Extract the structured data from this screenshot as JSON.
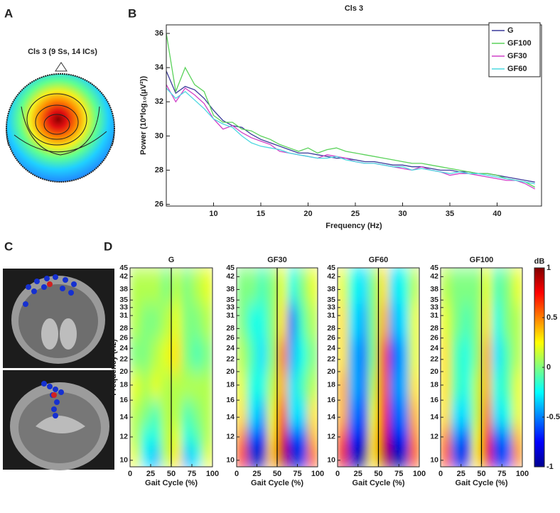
{
  "labels": {
    "a": "A",
    "b": "B",
    "c": "C",
    "d": "D",
    "topo_title": "Cls 3 (9 Ss, 14 ICs)"
  },
  "chart_data": [
    {
      "type": "line",
      "title": "Cls 3",
      "xlabel": "Frequency (Hz)",
      "ylabel": "Power (10*log₁₀(μV²))",
      "xlim": [
        5,
        44.7
      ],
      "ylim": [
        25.9,
        36.5
      ],
      "xticks": [
        10,
        15,
        20,
        25,
        30,
        35,
        40
      ],
      "yticks": [
        26,
        28,
        30,
        32,
        34,
        36
      ],
      "x": [
        5,
        6,
        7,
        8,
        9,
        10,
        11,
        12,
        13,
        14,
        15,
        16,
        17,
        18,
        19,
        20,
        21,
        22,
        23,
        24,
        25,
        26,
        27,
        28,
        29,
        30,
        31,
        32,
        33,
        34,
        35,
        36,
        37,
        38,
        39,
        40,
        41,
        42,
        43,
        44
      ],
      "series": [
        {
          "name": "G",
          "color": "#3a3a9a",
          "values": [
            33.8,
            32.5,
            32.9,
            32.7,
            32.2,
            31.5,
            30.9,
            30.6,
            30.5,
            30.1,
            29.8,
            29.6,
            29.4,
            29.2,
            29.0,
            29.0,
            28.9,
            28.8,
            28.7,
            28.7,
            28.6,
            28.5,
            28.5,
            28.4,
            28.3,
            28.3,
            28.2,
            28.2,
            28.1,
            28.0,
            28.0,
            27.9,
            27.9,
            27.8,
            27.8,
            27.7,
            27.6,
            27.5,
            27.4,
            27.3
          ]
        },
        {
          "name": "GF100",
          "color": "#5ad25a",
          "values": [
            36.0,
            32.6,
            34.0,
            33.0,
            32.6,
            31.2,
            30.8,
            30.8,
            30.4,
            30.3,
            30.0,
            29.8,
            29.5,
            29.3,
            29.1,
            29.3,
            29.0,
            29.2,
            29.3,
            29.1,
            29.0,
            28.9,
            28.8,
            28.7,
            28.6,
            28.5,
            28.4,
            28.4,
            28.3,
            28.2,
            28.1,
            28.0,
            27.9,
            27.8,
            27.8,
            27.7,
            27.5,
            27.4,
            27.3,
            27.0
          ]
        },
        {
          "name": "GF30",
          "color": "#d040c8",
          "values": [
            33.0,
            32.0,
            32.8,
            32.4,
            31.9,
            31.0,
            30.4,
            30.6,
            30.2,
            29.9,
            29.7,
            29.5,
            29.1,
            29.0,
            28.9,
            28.8,
            28.7,
            28.9,
            28.8,
            28.7,
            28.5,
            28.4,
            28.4,
            28.3,
            28.2,
            28.1,
            28.0,
            28.2,
            28.0,
            27.9,
            27.7,
            27.8,
            27.8,
            27.7,
            27.6,
            27.5,
            27.4,
            27.4,
            27.2,
            26.9
          ]
        },
        {
          "name": "GF60",
          "color": "#4cd8e0",
          "values": [
            32.8,
            32.2,
            32.6,
            32.1,
            31.6,
            31.0,
            30.7,
            30.5,
            30.0,
            29.6,
            29.4,
            29.3,
            29.2,
            29.0,
            28.9,
            28.8,
            28.7,
            28.7,
            28.8,
            28.6,
            28.5,
            28.4,
            28.4,
            28.3,
            28.2,
            28.2,
            28.0,
            28.1,
            28.0,
            27.9,
            27.8,
            27.9,
            27.8,
            27.8,
            27.7,
            27.6,
            27.5,
            27.4,
            27.3,
            27.2
          ]
        }
      ],
      "legend": "upper right"
    },
    {
      "type": "heatmap",
      "title": "G",
      "xlabel": "Gait Cycle (%)",
      "ylabel": "Frequency (Hz)",
      "ylog": true,
      "xlim": [
        0,
        100
      ],
      "ylim": [
        9.5,
        45
      ],
      "xticks": [
        0,
        25,
        50,
        75,
        100
      ],
      "yticks": [
        10,
        12,
        14,
        16,
        18,
        20,
        22,
        24,
        26,
        28,
        31,
        33,
        35,
        38,
        42,
        45
      ],
      "xbins": [
        0,
        12.5,
        25,
        37.5,
        50,
        62.5,
        75,
        87.5,
        100
      ],
      "ybins": [
        9.5,
        11,
        13,
        16,
        20,
        26,
        34,
        45
      ],
      "clim": [
        -1,
        1
      ],
      "vline": 50,
      "values": [
        [
          0.2,
          -0.3,
          -0.4,
          0.1,
          0.3,
          -0.4,
          -0.3,
          0.2
        ],
        [
          0.1,
          -0.2,
          -0.2,
          0.1,
          0.2,
          -0.2,
          -0.1,
          0.1
        ],
        [
          0.1,
          0,
          -0.1,
          0.1,
          0.1,
          -0.1,
          0,
          0.1
        ],
        [
          0.2,
          0.1,
          0.2,
          0.1,
          0.1,
          0.1,
          0.1,
          0.1
        ],
        [
          0,
          0,
          0.1,
          0.2,
          0.3,
          0,
          -0.1,
          0
        ],
        [
          0.1,
          0,
          0,
          0.1,
          0.2,
          0,
          0,
          0.1
        ],
        [
          0.1,
          0.1,
          0.1,
          0,
          0.1,
          0,
          0.1,
          0.2
        ]
      ]
    },
    {
      "type": "heatmap",
      "title": "GF30",
      "xlabel": "Gait Cycle (%)",
      "ylog": true,
      "xlim": [
        0,
        100
      ],
      "ylim": [
        9.5,
        45
      ],
      "xticks": [
        0,
        25,
        50,
        75,
        100
      ],
      "yticks": [
        10,
        12,
        14,
        16,
        18,
        20,
        22,
        24,
        26,
        28,
        31,
        33,
        35,
        38,
        42,
        45
      ],
      "xbins": [
        0,
        12.5,
        25,
        37.5,
        50,
        62.5,
        75,
        87.5,
        100
      ],
      "ybins": [
        9.5,
        11,
        13,
        16,
        20,
        26,
        34,
        45
      ],
      "clim": [
        -1,
        1
      ],
      "vline": 50,
      "values": [
        [
          0.7,
          -0.9,
          -0.9,
          0.4,
          0.9,
          -0.9,
          -0.8,
          0.6
        ],
        [
          0.5,
          -0.6,
          -0.7,
          0.3,
          0.8,
          -0.7,
          -0.6,
          0.4
        ],
        [
          0.3,
          -0.3,
          -0.4,
          0.2,
          0.6,
          -0.3,
          -0.3,
          0.3
        ],
        [
          0.2,
          -0.2,
          -0.2,
          0.1,
          0.4,
          -0.3,
          -0.1,
          0.1
        ],
        [
          0.1,
          -0.1,
          -0.3,
          0,
          0.5,
          -0.4,
          -0.2,
          0
        ],
        [
          0,
          -0.2,
          -0.2,
          0,
          0.3,
          -0.5,
          -0.1,
          0.1
        ],
        [
          0,
          0,
          -0.1,
          0,
          0.2,
          -0.2,
          0,
          0.2
        ]
      ]
    },
    {
      "type": "heatmap",
      "title": "GF60",
      "xlabel": "Gait Cycle (%)",
      "ylog": true,
      "xlim": [
        0,
        100
      ],
      "ylim": [
        9.5,
        45
      ],
      "xticks": [
        0,
        25,
        50,
        75,
        100
      ],
      "yticks": [
        10,
        12,
        14,
        16,
        18,
        20,
        22,
        24,
        26,
        28,
        31,
        33,
        35,
        38,
        42,
        45
      ],
      "xbins": [
        0,
        12.5,
        25,
        37.5,
        50,
        62.5,
        75,
        87.5,
        100
      ],
      "ybins": [
        9.5,
        11,
        13,
        16,
        20,
        26,
        34,
        45
      ],
      "clim": [
        -1,
        1
      ],
      "vline": 50,
      "values": [
        [
          0.8,
          -0.9,
          -1,
          0.3,
          0.9,
          -1,
          -0.9,
          0.6
        ],
        [
          0.6,
          -0.7,
          -0.8,
          0.3,
          0.8,
          -0.8,
          -0.7,
          0.5
        ],
        [
          0.4,
          -0.5,
          -0.6,
          0.2,
          0.7,
          -0.6,
          -0.5,
          0.4
        ],
        [
          0.4,
          -0.4,
          -0.5,
          0.1,
          0.6,
          -0.5,
          -0.4,
          0.3
        ],
        [
          0.3,
          -0.4,
          -0.5,
          0,
          0.6,
          -0.6,
          -0.4,
          0.2
        ],
        [
          0.3,
          -0.3,
          -0.4,
          0,
          0.4,
          -0.4,
          -0.3,
          0.2
        ],
        [
          0.2,
          -0.2,
          -0.3,
          0,
          0.3,
          -0.3,
          -0.2,
          0.1
        ]
      ]
    },
    {
      "type": "heatmap",
      "title": "GF100",
      "xlabel": "Gait Cycle (%)",
      "ylog": true,
      "xlim": [
        0,
        100
      ],
      "ylim": [
        9.5,
        45
      ],
      "xticks": [
        0,
        25,
        50,
        75,
        100
      ],
      "yticks": [
        10,
        12,
        14,
        16,
        18,
        20,
        22,
        24,
        26,
        28,
        31,
        33,
        35,
        38,
        42,
        45
      ],
      "xbins": [
        0,
        12.5,
        25,
        37.5,
        50,
        62.5,
        75,
        87.5,
        100
      ],
      "ybins": [
        9.5,
        11,
        13,
        16,
        20,
        26,
        34,
        45
      ],
      "clim": [
        -1,
        1
      ],
      "vline": 50,
      "values": [
        [
          0.6,
          -0.8,
          -0.8,
          0.3,
          0.8,
          -0.8,
          -0.7,
          0.5
        ],
        [
          0.5,
          -0.5,
          -0.6,
          0.2,
          0.7,
          -0.6,
          -0.5,
          0.4
        ],
        [
          0.3,
          -0.3,
          -0.3,
          0.1,
          0.5,
          -0.3,
          -0.2,
          0.2
        ],
        [
          0.3,
          -0.1,
          -0.2,
          0.1,
          0.4,
          -0.2,
          -0.1,
          0.2
        ],
        [
          0.3,
          -0.1,
          -0.2,
          0,
          0.4,
          -0.3,
          -0.1,
          0.1
        ],
        [
          0.2,
          0,
          -0.1,
          0,
          0.3,
          -0.2,
          0,
          0.1
        ],
        [
          0.1,
          0,
          0,
          0,
          0.2,
          -0.1,
          0,
          0.2
        ]
      ],
      "colorbar": {
        "label": "dB",
        "ticks": [
          -1,
          -0.5,
          0,
          0.5,
          1
        ]
      }
    }
  ]
}
